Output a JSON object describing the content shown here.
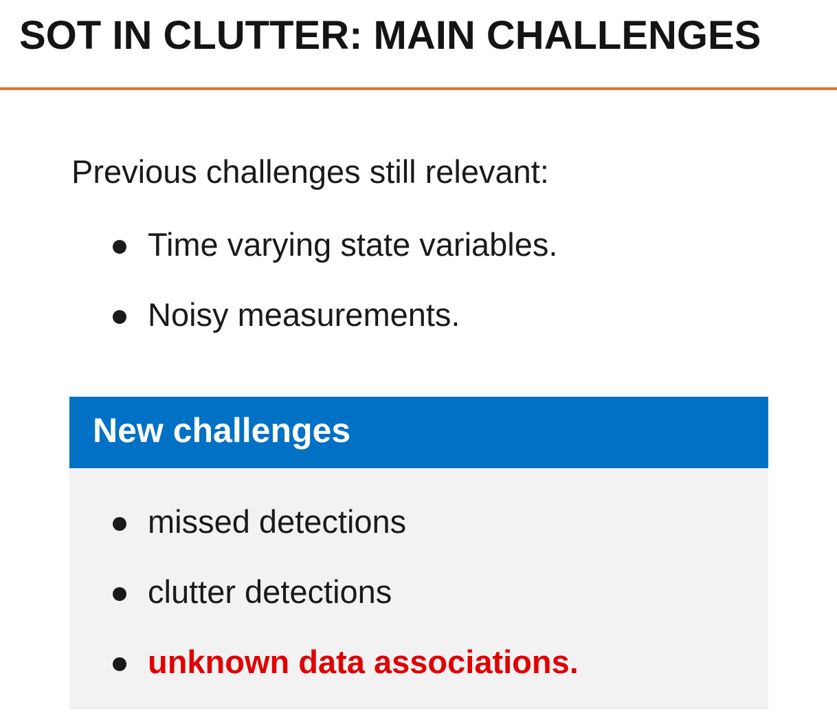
{
  "slide": {
    "title": "SOT IN CLUTTER: MAIN CHALLENGES",
    "accent_color": "#e8702a"
  },
  "previous": {
    "intro": "Previous challenges still relevant:",
    "items": [
      {
        "text": "Time varying state variables."
      },
      {
        "text": "Noisy measurements."
      }
    ]
  },
  "new_challenges": {
    "title": "New challenges",
    "header_color": "#0071c5",
    "body_color": "#f2f2f2",
    "items": [
      {
        "text": "missed detections"
      },
      {
        "text": "clutter detections"
      },
      {
        "text": "unknown data associations.",
        "highlight_color": "#e00000"
      }
    ]
  }
}
